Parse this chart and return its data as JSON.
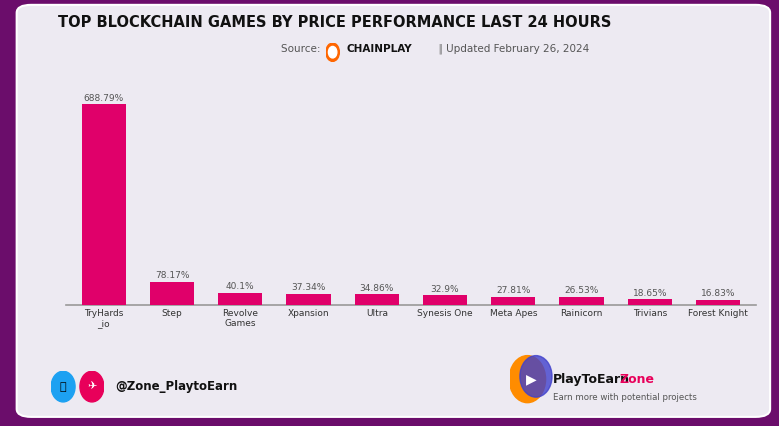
{
  "title": "TOP BLOCKCHAIN GAMES BY PRICE PERFORMANCE LAST 24 HOURS",
  "source_label": "Source:  ",
  "source_chainplay": "CHAINPLAY",
  "source_suffix": " | Updated February 26, 2024",
  "categories": [
    "TryHards\n_io",
    "Step",
    "Revolve\nGames",
    "Xpansion",
    "Ultra",
    "Synesis One",
    "Meta Apes",
    "Rainicorn",
    "Trivians",
    "Forest Knight"
  ],
  "values": [
    688.79,
    78.17,
    40.1,
    37.34,
    34.86,
    32.9,
    27.81,
    26.53,
    18.65,
    16.83
  ],
  "labels": [
    "688.79%",
    "78.17%",
    "40.1%",
    "37.34%",
    "34.86%",
    "32.9%",
    "27.81%",
    "26.53%",
    "18.65%",
    "16.83%"
  ],
  "bar_color": "#E0006A",
  "panel_bg": "#EDEAF2",
  "outer_bg": "#6B0D6B",
  "title_color": "#111111",
  "label_color": "#555555",
  "spine_color": "#999999",
  "footer_handle": "@Zone_PlaytoEarn",
  "footer_brand1": "PlayToEarn",
  "footer_brand2": "Zone",
  "footer_brand3": "Earn more with potential projects",
  "footer_brand2_color": "#E8005A",
  "ylim_max": 740
}
